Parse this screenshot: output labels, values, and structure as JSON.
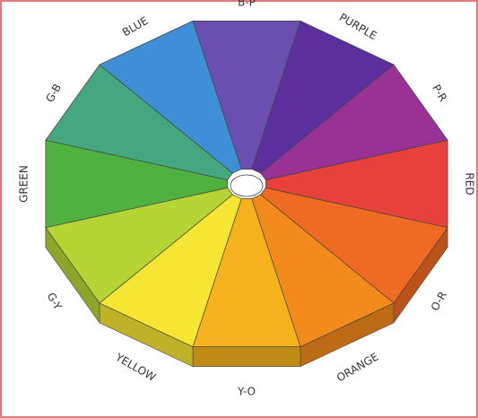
{
  "segments": [
    {
      "label": "B-P"
    },
    {
      "label": "PURPLE"
    },
    {
      "label": "P-R"
    },
    {
      "label": "RED"
    },
    {
      "label": "O-R"
    },
    {
      "label": "ORANGE"
    },
    {
      "label": "Y-O"
    },
    {
      "label": "YELLOW"
    },
    {
      "label": "G-Y"
    },
    {
      "label": "GREEN"
    },
    {
      "label": "G-B"
    },
    {
      "label": "BLUE"
    }
  ]
}
